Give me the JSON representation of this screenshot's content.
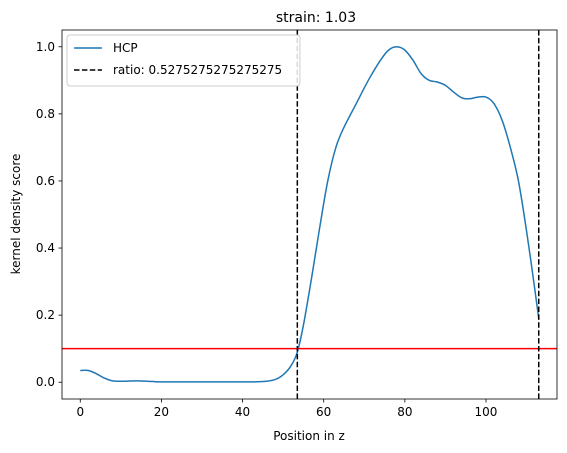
{
  "chart_data": {
    "type": "line",
    "title": "strain: 1.03",
    "xlabel": "Position in z",
    "ylabel": "kernel density score",
    "xlim": [
      -4.5,
      117.5
    ],
    "ylim": [
      -0.05,
      1.05
    ],
    "xticks": [
      0,
      20,
      40,
      60,
      80,
      100
    ],
    "yticks": [
      0.0,
      0.2,
      0.4,
      0.6,
      0.8,
      1.0
    ],
    "xtick_labels": [
      "0",
      "20",
      "40",
      "60",
      "80",
      "100"
    ],
    "ytick_labels": [
      "0.0",
      "0.2",
      "0.4",
      "0.6",
      "0.8",
      "1.0"
    ],
    "grid": false,
    "legend_position": "top-left",
    "series": [
      {
        "name": "HCP",
        "color": "#1f77b4",
        "style": "solid",
        "x": [
          0,
          2,
          4,
          6,
          8,
          10,
          14,
          18,
          20,
          30,
          40,
          45,
          48,
          50,
          52,
          53.5,
          55,
          57,
          59,
          61,
          63,
          65,
          68,
          71,
          74,
          76,
          78,
          80,
          82,
          84,
          86,
          88,
          90,
          92,
          94,
          96,
          98,
          100,
          102,
          104,
          106,
          108,
          110,
          112,
          113
        ],
        "y": [
          0.035,
          0.035,
          0.025,
          0.012,
          0.004,
          0.003,
          0.004,
          0.002,
          0.001,
          0.001,
          0.001,
          0.002,
          0.008,
          0.022,
          0.05,
          0.09,
          0.17,
          0.31,
          0.46,
          0.6,
          0.7,
          0.76,
          0.83,
          0.9,
          0.96,
          0.99,
          1.0,
          0.99,
          0.96,
          0.92,
          0.9,
          0.895,
          0.885,
          0.865,
          0.848,
          0.845,
          0.85,
          0.85,
          0.83,
          0.78,
          0.7,
          0.6,
          0.45,
          0.28,
          0.19
        ]
      }
    ],
    "vlines": [
      {
        "label": "ratio: 0.5275275275275275",
        "x": 53.5,
        "color": "#000000",
        "style": "dashed"
      },
      {
        "label": "",
        "x": 113,
        "color": "#000000",
        "style": "dashed"
      }
    ],
    "hlines": [
      {
        "label": "",
        "y": 0.1,
        "color": "#ff0000",
        "style": "solid"
      }
    ],
    "legend": [
      {
        "label": "HCP",
        "color": "#1f77b4",
        "style": "solid"
      },
      {
        "label": "ratio: 0.5275275275275275",
        "color": "#000000",
        "style": "dashed"
      }
    ]
  }
}
